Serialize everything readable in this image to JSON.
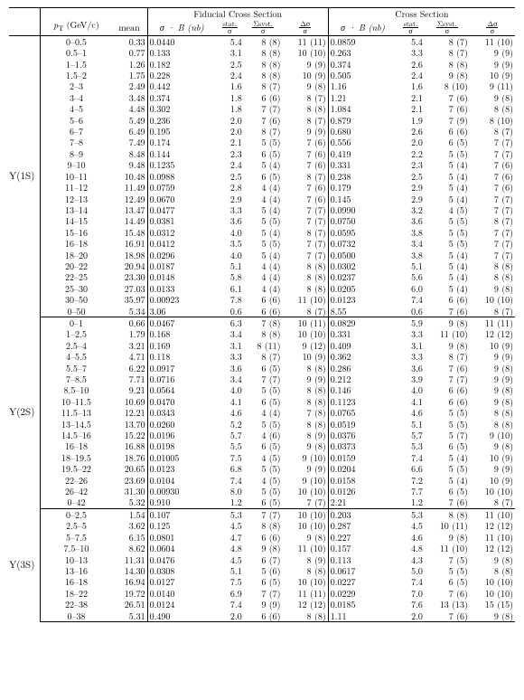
{
  "columns": {
    "fiducial_header": "Fiducial Cross Section",
    "xsec_header": "Cross Section",
    "pt": "p",
    "pt_sub": "T",
    "pt_unit": "(GeV/c)",
    "mean": "mean",
    "sigB": "σ · B (nb)",
    "stat_num": "stat.",
    "stat_den": "σ",
    "sys_num": "Σsyst.",
    "sys_den": "σ",
    "dsig_num": "Δσ",
    "dsig_den": "σ"
  },
  "sections": [
    {
      "state": "Y(1S)",
      "rows": [
        {
          "pt": "0–0.5",
          "mean": "0.33",
          "sb1": "0.0440",
          "st1": "5.4",
          "sy1": "8 (8)",
          "ds1": "11 (11)",
          "sb2": "0.0859",
          "st2": "5.4",
          "sy2": "8 (7)",
          "ds2": "11 (10)"
        },
        {
          "pt": "0.5–1",
          "mean": "0.77",
          "sb1": "0.133",
          "st1": "3.1",
          "sy1": "8 (8)",
          "ds1": "10 (10)",
          "sb2": "0.263",
          "st2": "3.3",
          "sy2": "8 (7)",
          "ds2": "9 (9)"
        },
        {
          "pt": "1–1.5",
          "mean": "1.26",
          "sb1": "0.182",
          "st1": "2.5",
          "sy1": "8 (8)",
          "ds1": "9 (9)",
          "sb2": "0.374",
          "st2": "2.6",
          "sy2": "8 (8)",
          "ds2": "9 (9)"
        },
        {
          "pt": "1.5–2",
          "mean": "1.75",
          "sb1": "0.228",
          "st1": "2.4",
          "sy1": "8 (8)",
          "ds1": "10 (9)",
          "sb2": "0.505",
          "st2": "2.4",
          "sy2": "9 (8)",
          "ds2": "10 (9)"
        },
        {
          "pt": "2–3",
          "mean": "2.49",
          "sb1": "0.442",
          "st1": "1.6",
          "sy1": "8 (7)",
          "ds1": "9 (8)",
          "sb2": "1.16",
          "st2": "1.6",
          "sy2": "8 (10)",
          "ds2": "9 (11)"
        },
        {
          "pt": "3–4",
          "mean": "3.48",
          "sb1": "0.374",
          "st1": "1.8",
          "sy1": "6 (6)",
          "ds1": "8 (7)",
          "sb2": "1.21",
          "st2": "2.1",
          "sy2": "7 (6)",
          "ds2": "9 (8)"
        },
        {
          "pt": "4–5",
          "mean": "4.48",
          "sb1": "0.302",
          "st1": "1.8",
          "sy1": "7 (7)",
          "ds1": "8 (8)",
          "sb2": "1.084",
          "st2": "2.1",
          "sy2": "7 (6)",
          "ds2": "8 (8)"
        },
        {
          "pt": "5–6",
          "mean": "5.49",
          "sb1": "0.236",
          "st1": "2.0",
          "sy1": "7 (6)",
          "ds1": "8 (7)",
          "sb2": "0.879",
          "st2": "1.9",
          "sy2": "7 (9)",
          "ds2": "8 (10)"
        },
        {
          "pt": "6–7",
          "mean": "6.49",
          "sb1": "0.195",
          "st1": "2.0",
          "sy1": "8 (7)",
          "ds1": "9 (9)",
          "sb2": "0.680",
          "st2": "2.6",
          "sy2": "6 (6)",
          "ds2": "8 (7)"
        },
        {
          "pt": "7–8",
          "mean": "7.49",
          "sb1": "0.174",
          "st1": "2.1",
          "sy1": "5 (5)",
          "ds1": "7 (6)",
          "sb2": "0.556",
          "st2": "2.0",
          "sy2": "6 (5)",
          "ds2": "7 (7)"
        },
        {
          "pt": "8–9",
          "mean": "8.48",
          "sb1": "0.144",
          "st1": "2.3",
          "sy1": "6 (5)",
          "ds1": "7 (6)",
          "sb2": "0.419",
          "st2": "2.2",
          "sy2": "5 (5)",
          "ds2": "7 (7)"
        },
        {
          "pt": "9–10",
          "mean": "9.48",
          "sb1": "0.1235",
          "st1": "2.4",
          "sy1": "5 (4)",
          "ds1": "7 (6)",
          "sb2": "0.331",
          "st2": "2.3",
          "sy2": "5 (4)",
          "ds2": "7 (6)"
        },
        {
          "pt": "10–11",
          "mean": "10.48",
          "sb1": "0.0988",
          "st1": "2.5",
          "sy1": "6 (5)",
          "ds1": "8 (7)",
          "sb2": "0.238",
          "st2": "2.5",
          "sy2": "5 (4)",
          "ds2": "7 (6)"
        },
        {
          "pt": "11–12",
          "mean": "11.49",
          "sb1": "0.0759",
          "st1": "2.8",
          "sy1": "4 (4)",
          "ds1": "7 (6)",
          "sb2": "0.179",
          "st2": "2.9",
          "sy2": "5 (4)",
          "ds2": "7 (6)"
        },
        {
          "pt": "12–13",
          "mean": "12.49",
          "sb1": "0.0670",
          "st1": "2.9",
          "sy1": "4 (4)",
          "ds1": "7 (6)",
          "sb2": "0.145",
          "st2": "2.9",
          "sy2": "5 (4)",
          "ds2": "7 (7)"
        },
        {
          "pt": "13–14",
          "mean": "13.47",
          "sb1": "0.0477",
          "st1": "3.3",
          "sy1": "5 (4)",
          "ds1": "7 (7)",
          "sb2": "0.0990",
          "st2": "3.2",
          "sy2": "4 (5)",
          "ds2": "7 (7)"
        },
        {
          "pt": "14–15",
          "mean": "14.49",
          "sb1": "0.0381",
          "st1": "3.6",
          "sy1": "5 (5)",
          "ds1": "7 (7)",
          "sb2": "0.0750",
          "st2": "3.6",
          "sy2": "5 (5)",
          "ds2": "8 (7)"
        },
        {
          "pt": "15–16",
          "mean": "15.48",
          "sb1": "0.0312",
          "st1": "4.0",
          "sy1": "5 (4)",
          "ds1": "8 (7)",
          "sb2": "0.0595",
          "st2": "3.8",
          "sy2": "5 (5)",
          "ds2": "7 (7)"
        },
        {
          "pt": "16–18",
          "mean": "16.91",
          "sb1": "0.0412",
          "st1": "3.5",
          "sy1": "5 (5)",
          "ds1": "7 (7)",
          "sb2": "0.0732",
          "st2": "3.4",
          "sy2": "5 (5)",
          "ds2": "7 (7)"
        },
        {
          "pt": "18–20",
          "mean": "18.98",
          "sb1": "0.0296",
          "st1": "4.0",
          "sy1": "5 (4)",
          "ds1": "7 (7)",
          "sb2": "0.0500",
          "st2": "3.8",
          "sy2": "5 (4)",
          "ds2": "7 (7)"
        },
        {
          "pt": "20–22",
          "mean": "20.94",
          "sb1": "0.0187",
          "st1": "5.1",
          "sy1": "4 (4)",
          "ds1": "8 (8)",
          "sb2": "0.0302",
          "st2": "5.1",
          "sy2": "5 (4)",
          "ds2": "8 (8)"
        },
        {
          "pt": "22–25",
          "mean": "23.30",
          "sb1": "0.0148",
          "st1": "5.8",
          "sy1": "4 (4)",
          "ds1": "8 (8)",
          "sb2": "0.0237",
          "st2": "5.6",
          "sy2": "5 (4)",
          "ds2": "8 (8)"
        },
        {
          "pt": "25–30",
          "mean": "27.03",
          "sb1": "0.0133",
          "st1": "6.1",
          "sy1": "4 (4)",
          "ds1": "8 (8)",
          "sb2": "0.0205",
          "st2": "6.0",
          "sy2": "5 (4)",
          "ds2": "9 (8)"
        },
        {
          "pt": "30–50",
          "mean": "35.97",
          "sb1": "0.00923",
          "st1": "7.8",
          "sy1": "6 (6)",
          "ds1": "11 (10)",
          "sb2": "0.0123",
          "st2": "7.4",
          "sy2": "6 (6)",
          "ds2": "10 (10)"
        },
        {
          "pt": "0–50",
          "mean": "5.34",
          "sb1": "3.06",
          "st1": "0.6",
          "sy1": "6 (6)",
          "ds1": "8 (7)",
          "sb2": "8.55",
          "st2": "0.6",
          "sy2": "7 (6)",
          "ds2": "8 (7)"
        }
      ]
    },
    {
      "state": "Y(2S)",
      "rows": [
        {
          "pt": "0–1",
          "mean": "0.66",
          "sb1": "0.0467",
          "st1": "6.3",
          "sy1": "7 (8)",
          "ds1": "10 (11)",
          "sb2": "0.0829",
          "st2": "5.9",
          "sy2": "9 (8)",
          "ds2": "11 (11)"
        },
        {
          "pt": "1–2.5",
          "mean": "1.79",
          "sb1": "0.168",
          "st1": "3.4",
          "sy1": "8 (8)",
          "ds1": "10 (10)",
          "sb2": "0.331",
          "st2": "3.3",
          "sy2": "11 (10)",
          "ds2": "12 (12)"
        },
        {
          "pt": "2.5–4",
          "mean": "3.21",
          "sb1": "0.169",
          "st1": "3.1",
          "sy1": "8 (11)",
          "ds1": "9 (12)",
          "sb2": "0.409",
          "st2": "3.1",
          "sy2": "9 (8)",
          "ds2": "10 (9)"
        },
        {
          "pt": "4–5.5",
          "mean": "4.71",
          "sb1": "0.118",
          "st1": "3.3",
          "sy1": "8 (7)",
          "ds1": "10 (9)",
          "sb2": "0.362",
          "st2": "3.3",
          "sy2": "8 (7)",
          "ds2": "9 (9)"
        },
        {
          "pt": "5.5–7",
          "mean": "6.22",
          "sb1": "0.0917",
          "st1": "3.6",
          "sy1": "6 (5)",
          "ds1": "8 (8)",
          "sb2": "0.286",
          "st2": "3.6",
          "sy2": "7 (6)",
          "ds2": "9 (8)"
        },
        {
          "pt": "7–8.5",
          "mean": "7.71",
          "sb1": "0.0716",
          "st1": "3.4",
          "sy1": "7 (7)",
          "ds1": "9 (9)",
          "sb2": "0.212",
          "st2": "3.9",
          "sy2": "7 (7)",
          "ds2": "9 (9)"
        },
        {
          "pt": "8.5–10",
          "mean": "9.21",
          "sb1": "0.0564",
          "st1": "4.0",
          "sy1": "5 (5)",
          "ds1": "8 (8)",
          "sb2": "0.146",
          "st2": "4.0",
          "sy2": "6 (6)",
          "ds2": "9 (8)"
        },
        {
          "pt": "10–11.5",
          "mean": "10.69",
          "sb1": "0.0470",
          "st1": "4.1",
          "sy1": "6 (5)",
          "ds1": "8 (8)",
          "sb2": "0.1123",
          "st2": "4.1",
          "sy2": "6 (6)",
          "ds2": "9 (8)"
        },
        {
          "pt": "11.5–13",
          "mean": "12.21",
          "sb1": "0.0343",
          "st1": "4.6",
          "sy1": "4 (4)",
          "ds1": "7 (8)",
          "sb2": "0.0765",
          "st2": "4.6",
          "sy2": "5 (5)",
          "ds2": "8 (8)"
        },
        {
          "pt": "13–14.5",
          "mean": "13.70",
          "sb1": "0.0260",
          "st1": "5.2",
          "sy1": "5 (5)",
          "ds1": "8 (8)",
          "sb2": "0.0519",
          "st2": "5.1",
          "sy2": "5 (5)",
          "ds2": "8 (8)"
        },
        {
          "pt": "14.5–16",
          "mean": "15.22",
          "sb1": "0.0196",
          "st1": "5.7",
          "sy1": "4 (6)",
          "ds1": "8 (9)",
          "sb2": "0.0376",
          "st2": "5.7",
          "sy2": "5 (7)",
          "ds2": "9 (10)"
        },
        {
          "pt": "16–18",
          "mean": "16.88",
          "sb1": "0.0198",
          "st1": "5.5",
          "sy1": "6 (5)",
          "ds1": "9 (8)",
          "sb2": "0.0373",
          "st2": "5.3",
          "sy2": "6 (5)",
          "ds2": "9 (8)"
        },
        {
          "pt": "18–19.5",
          "mean": "18.76",
          "sb1": "0.01005",
          "st1": "7.5",
          "sy1": "4 (5)",
          "ds1": "9 (10)",
          "sb2": "0.0159",
          "st2": "7.4",
          "sy2": "5 (4)",
          "ds2": "10 (9)"
        },
        {
          "pt": "19.5–22",
          "mean": "20.65",
          "sb1": "0.0123",
          "st1": "6.8",
          "sy1": "5 (5)",
          "ds1": "9 (9)",
          "sb2": "0.0204",
          "st2": "6.6",
          "sy2": "5 (5)",
          "ds2": "9 (9)"
        },
        {
          "pt": "22–26",
          "mean": "23.69",
          "sb1": "0.0104",
          "st1": "7.4",
          "sy1": "4 (5)",
          "ds1": "9 (10)",
          "sb2": "0.0158",
          "st2": "7.2",
          "sy2": "5 (4)",
          "ds2": "10 (9)"
        },
        {
          "pt": "26–42",
          "mean": "31.30",
          "sb1": "0.00930",
          "st1": "8.0",
          "sy1": "5 (5)",
          "ds1": "10 (10)",
          "sb2": "0.0126",
          "st2": "7.7",
          "sy2": "6 (5)",
          "ds2": "10 (10)"
        },
        {
          "pt": "0–42",
          "mean": "5.32",
          "sb1": "0.910",
          "st1": "1.2",
          "sy1": "6 (5)",
          "ds1": "7 (7)",
          "sb2": "2.21",
          "st2": "1.2",
          "sy2": "7 (6)",
          "ds2": "8 (7)"
        }
      ]
    },
    {
      "state": "Y(3S)",
      "rows": [
        {
          "pt": "0–2.5",
          "mean": "1.54",
          "sb1": "0.107",
          "st1": "5.3",
          "sy1": "7 (7)",
          "ds1": "10 (10)",
          "sb2": "0.203",
          "st2": "5.3",
          "sy2": "8 (8)",
          "ds2": "11 (10)"
        },
        {
          "pt": "2.5–5",
          "mean": "3.62",
          "sb1": "0.125",
          "st1": "4.5",
          "sy1": "8 (8)",
          "ds1": "10 (10)",
          "sb2": "0.287",
          "st2": "4.5",
          "sy2": "10 (11)",
          "ds2": "12 (12)"
        },
        {
          "pt": "5–7.5",
          "mean": "6.15",
          "sb1": "0.0801",
          "st1": "4.7",
          "sy1": "6 (6)",
          "ds1": "9 (8)",
          "sb2": "0.227",
          "st2": "4.6",
          "sy2": "9 (8)",
          "ds2": "11 (10)"
        },
        {
          "pt": "7.5–10",
          "mean": "8.62",
          "sb1": "0.0604",
          "st1": "4.8",
          "sy1": "9 (8)",
          "ds1": "11 (10)",
          "sb2": "0.157",
          "st2": "4.8",
          "sy2": "11 (10)",
          "ds2": "12 (12)"
        },
        {
          "pt": "10–13",
          "mean": "11.31",
          "sb1": "0.0476",
          "st1": "4.5",
          "sy1": "6 (7)",
          "ds1": "8 (9)",
          "sb2": "0.113",
          "st2": "4.3",
          "sy2": "7 (5)",
          "ds2": "9 (8)"
        },
        {
          "pt": "13–16",
          "mean": "14.30",
          "sb1": "0.0308",
          "st1": "5.1",
          "sy1": "5 (6)",
          "ds1": "8 (8)",
          "sb2": "0.0617",
          "st2": "5.0",
          "sy2": "5 (5)",
          "ds2": "8 (8)"
        },
        {
          "pt": "16–18",
          "mean": "16.94",
          "sb1": "0.0127",
          "st1": "7.5",
          "sy1": "6 (5)",
          "ds1": "10 (10)",
          "sb2": "0.0227",
          "st2": "7.4",
          "sy2": "6 (5)",
          "ds2": "10 (10)"
        },
        {
          "pt": "18–22",
          "mean": "19.72",
          "sb1": "0.0140",
          "st1": "6.9",
          "sy1": "7 (7)",
          "ds1": "11 (11)",
          "sb2": "0.0229",
          "st2": "7.0",
          "sy2": "7 (6)",
          "ds2": "10 (10)"
        },
        {
          "pt": "22–38",
          "mean": "26.51",
          "sb1": "0.0124",
          "st1": "7.4",
          "sy1": "9 (9)",
          "ds1": "12 (12)",
          "sb2": "0.0185",
          "st2": "7.6",
          "sy2": "13 (13)",
          "ds2": "15 (15)"
        },
        {
          "pt": "0–38",
          "mean": "5.31",
          "sb1": "0.490",
          "st1": "2.0",
          "sy1": "6 (6)",
          "ds1": "8 (8)",
          "sb2": "1.11",
          "st2": "2.0",
          "sy2": "7 (6)",
          "ds2": "9 (8)"
        }
      ]
    }
  ]
}
